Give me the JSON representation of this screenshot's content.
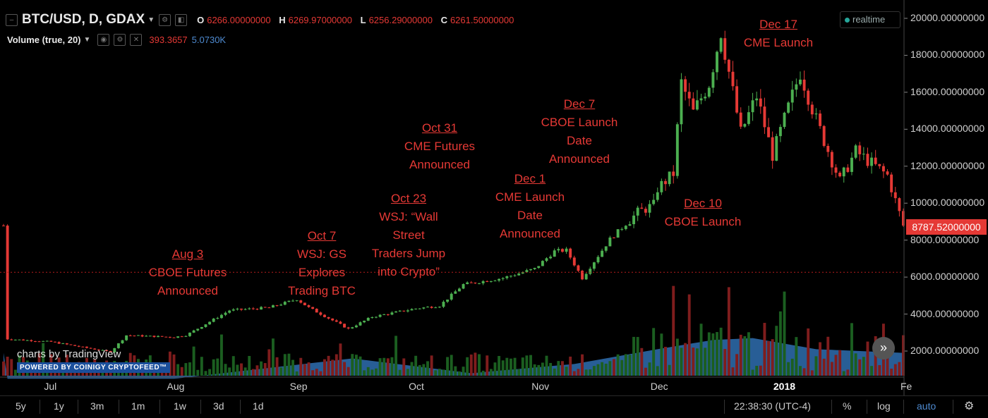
{
  "header": {
    "symbol": "BTC/USD, D, GDAX",
    "o_label": "O",
    "o_value": "6266.00000000",
    "h_label": "H",
    "h_value": "6269.97000000",
    "l_label": "L",
    "l_value": "6256.29000000",
    "c_label": "C",
    "c_value": "6261.50000000",
    "volume_label": "Volume (true, 20)",
    "volume_value": "393.3657",
    "volume_ma": "5.0730K",
    "realtime": "realtime"
  },
  "annotations": [
    {
      "date": "Aug 3",
      "lines": [
        "CBOE Futures",
        "Announced"
      ]
    },
    {
      "date": "Oct 7",
      "lines": [
        "WSJ: GS",
        "Explores",
        "Trading BTC"
      ]
    },
    {
      "date": "Oct 23",
      "lines": [
        "WSJ: “Wall",
        "Street",
        "Traders Jump",
        "into Crypto”"
      ]
    },
    {
      "date": "Oct 31",
      "lines": [
        "CME Futures",
        "Announced"
      ]
    },
    {
      "date": "Dec 1",
      "lines": [
        "CME Launch",
        "Date",
        "Announced"
      ]
    },
    {
      "date": "Dec 7",
      "lines": [
        "CBOE Launch",
        "Date",
        "Announced"
      ]
    },
    {
      "date": "Dec 10",
      "lines": [
        "CBOE Launch"
      ]
    },
    {
      "date": "Dec 17",
      "lines": [
        "CME Launch"
      ]
    }
  ],
  "price_tag": "8787.52000000",
  "watermark": {
    "line1": "charts by TradingView",
    "line2": "POWERED BY COINIGY CRYPTOFEED™"
  },
  "toolbar": {
    "ranges": [
      "5y",
      "1y",
      "3m",
      "1m",
      "1w",
      "3d",
      "1d"
    ],
    "time": "22:38:30 (UTC-4)",
    "percent": "%",
    "log": "log",
    "auto": "auto"
  },
  "colors": {
    "up": "#4caf50",
    "down": "#e53935",
    "volume_area": "#2f6fb0",
    "annotation": "#e53935"
  },
  "chart_data": {
    "type": "candlestick",
    "title": "BTC/USD, D, GDAX",
    "y_axis_labels": [
      "20000.00000000",
      "18000.00000000",
      "16000.00000000",
      "14000.00000000",
      "12000.00000000",
      "10000.00000000",
      "8000.00000000",
      "6000.00000000",
      "4000.00000000",
      "2000.00000000"
    ],
    "x_axis_labels": [
      "Jul",
      "Aug",
      "Sep",
      "Oct",
      "Nov",
      "Dec",
      "2018",
      "Fe"
    ],
    "ylim": [
      0,
      20500
    ],
    "xlim": [
      "2017-06-19",
      "2018-02-01"
    ],
    "last_price": 8787.52,
    "price_path_daily_close": [
      [
        "2017-06-20",
        2650
      ],
      [
        "2017-07-01",
        2500
      ],
      [
        "2017-07-16",
        1950
      ],
      [
        "2017-07-20",
        2850
      ],
      [
        "2017-08-01",
        2750
      ],
      [
        "2017-08-04",
        2850
      ],
      [
        "2017-08-15",
        4200
      ],
      [
        "2017-08-25",
        4350
      ],
      [
        "2017-09-01",
        4800
      ],
      [
        "2017-09-04",
        4350
      ],
      [
        "2017-09-14",
        3200
      ],
      [
        "2017-09-20",
        3850
      ],
      [
        "2017-10-01",
        4300
      ],
      [
        "2017-10-07",
        4450
      ],
      [
        "2017-10-13",
        5600
      ],
      [
        "2017-10-23",
        5950
      ],
      [
        "2017-10-31",
        6450
      ],
      [
        "2017-11-05",
        7400
      ],
      [
        "2017-11-08",
        7450
      ],
      [
        "2017-11-12",
        5950
      ],
      [
        "2017-11-19",
        8050
      ],
      [
        "2017-11-26",
        9500
      ],
      [
        "2017-11-30",
        9900
      ],
      [
        "2017-12-01",
        10800
      ],
      [
        "2017-12-05",
        11600
      ],
      [
        "2017-12-07",
        16500
      ],
      [
        "2017-12-10",
        14900
      ],
      [
        "2017-12-14",
        16500
      ],
      [
        "2017-12-17",
        19300
      ],
      [
        "2017-12-22",
        13800
      ],
      [
        "2017-12-26",
        15800
      ],
      [
        "2017-12-30",
        12600
      ],
      [
        "2018-01-06",
        17100
      ],
      [
        "2018-01-10",
        14500
      ],
      [
        "2018-01-16",
        11200
      ],
      [
        "2018-01-20",
        12800
      ],
      [
        "2018-01-28",
        11500
      ],
      [
        "2018-02-01",
        8787
      ]
    ],
    "volume_ma_path": [
      [
        "2017-06-20",
        500
      ],
      [
        "2017-08-01",
        500
      ],
      [
        "2017-09-15",
        1600
      ],
      [
        "2017-10-15",
        800
      ],
      [
        "2017-11-10",
        1300
      ],
      [
        "2017-12-01",
        2100
      ],
      [
        "2017-12-15",
        2600
      ],
      [
        "2017-12-25",
        2700
      ],
      [
        "2018-01-10",
        2100
      ],
      [
        "2018-02-01",
        1900
      ]
    ],
    "horizontal_line": 6261.5
  }
}
